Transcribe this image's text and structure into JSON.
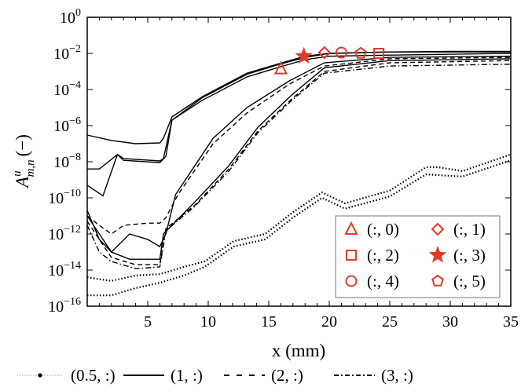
{
  "chart_data": {
    "type": "line",
    "xlabel": "x (mm)",
    "ylabel_base": "A",
    "ylabel_sup": "u",
    "ylabel_sub": "m,n",
    "ylabel_unit": "(−)",
    "xlim": [
      0,
      35
    ],
    "ylim": [
      1e-16,
      1
    ],
    "yscale": "log",
    "xticks": [
      5,
      10,
      15,
      20,
      25,
      30,
      35
    ],
    "yticks": [
      0,
      -2,
      -4,
      -6,
      -8,
      -10,
      -12,
      -14,
      -16
    ],
    "ytick_base": "10",
    "grid": false,
    "series": [
      {
        "style": "solid",
        "points": [
          [
            0,
            3e-07
          ],
          [
            2,
            1.5e-07
          ],
          [
            4,
            1e-07
          ],
          [
            6,
            1.1e-07
          ],
          [
            6.3,
            2e-07
          ],
          [
            7,
            3e-06
          ],
          [
            9.5,
            4e-05
          ],
          [
            13.2,
            0.0008
          ],
          [
            15.7,
            0.0025
          ],
          [
            18,
            0.007
          ],
          [
            20,
            0.01
          ],
          [
            25,
            0.012
          ],
          [
            30,
            0.013
          ],
          [
            35,
            0.013
          ]
        ]
      },
      {
        "style": "solid",
        "points": [
          [
            0,
            4e-09
          ],
          [
            1,
            4e-09
          ],
          [
            2.5,
            2.5e-08
          ],
          [
            3,
            1.5e-08
          ],
          [
            6,
            1.1e-08
          ],
          [
            6.3,
            1.5e-08
          ],
          [
            7,
            2e-06
          ],
          [
            9.5,
            2.5e-05
          ],
          [
            13.2,
            0.0005
          ],
          [
            15.7,
            0.0016
          ],
          [
            18,
            0.0045
          ],
          [
            20,
            0.007
          ],
          [
            25,
            0.008
          ],
          [
            35,
            0.01
          ]
        ]
      },
      {
        "style": "solid",
        "points": [
          [
            0,
            5e-10
          ],
          [
            1.3,
            1.3e-10
          ],
          [
            2.5,
            2.5e-08
          ],
          [
            3,
            1.2e-08
          ],
          [
            6,
            9e-09
          ],
          [
            6.5,
            2e-08
          ],
          [
            7,
            2e-06
          ],
          [
            9.5,
            3.5e-05
          ],
          [
            13.2,
            0.0007
          ],
          [
            15.7,
            0.0023
          ],
          [
            18,
            0.006
          ],
          [
            20,
            0.01
          ],
          [
            25,
            0.012
          ],
          [
            35,
            0.012
          ]
        ]
      },
      {
        "style": "solid",
        "points": [
          [
            0,
            2e-11
          ],
          [
            1,
            5e-13
          ],
          [
            2,
            1e-13
          ],
          [
            3.5,
            1e-12
          ],
          [
            5,
            5e-13
          ],
          [
            6,
            2e-13
          ],
          [
            6.5,
            1e-12
          ],
          [
            7.3,
            1.5e-10
          ],
          [
            10.4,
            2e-07
          ],
          [
            13.2,
            1e-05
          ],
          [
            16.7,
            0.0003
          ],
          [
            19.6,
            0.003
          ],
          [
            25,
            0.006
          ],
          [
            35,
            0.007
          ]
        ]
      },
      {
        "style": "dashed",
        "points": [
          [
            0,
            1e-11
          ],
          [
            1,
            3e-12
          ],
          [
            2,
            1e-12
          ],
          [
            3,
            3e-12
          ],
          [
            5,
            4e-12
          ],
          [
            6,
            4e-12
          ],
          [
            6.5,
            8e-12
          ],
          [
            7.5,
            1.5e-10
          ],
          [
            10.4,
            1e-07
          ],
          [
            13.2,
            5e-06
          ],
          [
            16.7,
            0.0002
          ],
          [
            19.6,
            0.002
          ],
          [
            25,
            0.005
          ],
          [
            35,
            0.006
          ]
        ]
      },
      {
        "style": "solid",
        "points": [
          [
            0,
            1e-11
          ],
          [
            1,
            1e-12
          ],
          [
            2,
            1e-13
          ],
          [
            3.5,
            4e-14
          ],
          [
            6,
            4e-14
          ],
          [
            6.3,
            1e-12
          ],
          [
            8.9,
            6e-11
          ],
          [
            11.7,
            6e-09
          ],
          [
            14.1,
            8e-07
          ],
          [
            16.9,
            5e-05
          ],
          [
            19.6,
            0.0016
          ],
          [
            25,
            0.004
          ],
          [
            35,
            0.005
          ]
        ]
      },
      {
        "style": "dashed",
        "points": [
          [
            0,
            5e-12
          ],
          [
            2,
            5e-14
          ],
          [
            4,
            2e-14
          ],
          [
            6,
            2e-14
          ],
          [
            6.5,
            2e-12
          ],
          [
            8.9,
            4e-11
          ],
          [
            11.7,
            4e-09
          ],
          [
            14.1,
            5e-07
          ],
          [
            16.9,
            3e-05
          ],
          [
            19.6,
            0.001
          ],
          [
            25,
            0.003
          ],
          [
            35,
            0.004
          ]
        ]
      },
      {
        "style": "dashdot",
        "points": [
          [
            0,
            3e-12
          ],
          [
            1,
            1e-13
          ],
          [
            2,
            3e-14
          ],
          [
            4,
            1.2e-14
          ],
          [
            6,
            1.5e-14
          ],
          [
            6.5,
            1.5e-12
          ],
          [
            8.9,
            3.5e-11
          ],
          [
            11.7,
            3e-09
          ],
          [
            14.1,
            4e-07
          ],
          [
            16.9,
            2.5e-05
          ],
          [
            19.6,
            0.0008
          ],
          [
            25,
            0.002
          ],
          [
            35,
            0.0025
          ]
        ]
      },
      {
        "style": "dotted",
        "points": [
          [
            0,
            4e-15
          ],
          [
            2,
            2.5e-15
          ],
          [
            4,
            5e-15
          ],
          [
            6,
            6e-15
          ],
          [
            8,
            1.5e-14
          ],
          [
            9.7,
            3e-14
          ],
          [
            12.1,
            4e-13
          ],
          [
            14.7,
            1e-12
          ],
          [
            17,
            1.6e-11
          ],
          [
            19.4,
            2e-10
          ],
          [
            21.3,
            5e-11
          ],
          [
            25,
            2.5e-10
          ],
          [
            28,
            5e-09
          ],
          [
            29,
            5e-09
          ],
          [
            31,
            3e-09
          ],
          [
            35,
            2.5e-08
          ]
        ]
      },
      {
        "style": "dotted",
        "points": [
          [
            0,
            4e-16
          ],
          [
            2,
            4e-16
          ],
          [
            4,
            1e-15
          ],
          [
            6,
            2e-15
          ],
          [
            8,
            5e-15
          ],
          [
            9.7,
            1.5e-14
          ],
          [
            12.1,
            2e-13
          ],
          [
            14.7,
            5e-13
          ],
          [
            17,
            8e-12
          ],
          [
            19.4,
            1e-10
          ],
          [
            21.3,
            2.5e-11
          ],
          [
            25,
            1.2e-10
          ],
          [
            28,
            2e-09
          ],
          [
            31,
            1.5e-09
          ],
          [
            35,
            1.2e-08
          ]
        ]
      }
    ],
    "markers": [
      {
        "shape": "triangle",
        "label": "(:, 0)",
        "x": 16.0,
        "y": 0.0014
      },
      {
        "shape": "diamond",
        "label": "(:, 1)",
        "x": 19.6,
        "y": 0.011
      },
      {
        "shape": "square",
        "label": "(:, 2)",
        "x": 24.1,
        "y": 0.01
      },
      {
        "shape": "star",
        "label": "(:, 3)",
        "x": 17.9,
        "y": 0.007
      },
      {
        "shape": "circle",
        "label": "(:, 4)",
        "x": 21.0,
        "y": 0.011
      },
      {
        "shape": "pentagon",
        "label": "(:, 5)",
        "x": 22.6,
        "y": 0.01
      }
    ],
    "marker_color": "#e03a2a",
    "marker_legend_placement": "lower-right",
    "line_legend": [
      {
        "style": "dotted",
        "label": "(0.5, :)"
      },
      {
        "style": "solid",
        "label": "(1, :)"
      },
      {
        "style": "dashed",
        "label": "(2, :)"
      },
      {
        "style": "dashdot",
        "label": "(3, :)"
      }
    ],
    "line_legend_placement": "bottom"
  }
}
